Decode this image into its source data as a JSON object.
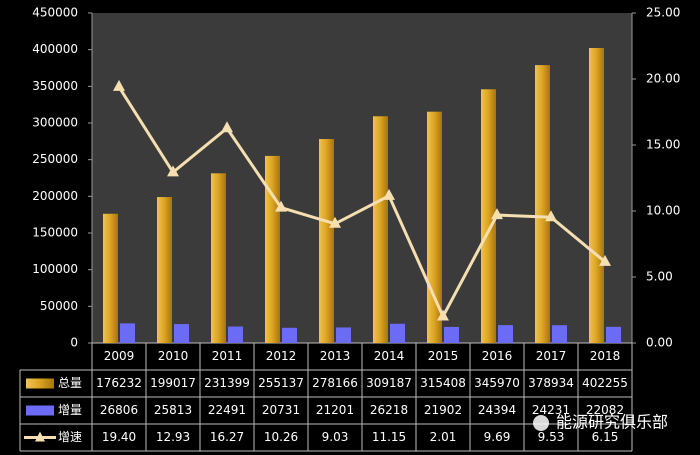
{
  "chart_data": {
    "type": "bar-line-table",
    "categories": [
      "2009",
      "2010",
      "2011",
      "2012",
      "2013",
      "2014",
      "2015",
      "2016",
      "2017",
      "2018"
    ],
    "series": [
      {
        "name": "总量",
        "type": "bar",
        "color": "#dba322",
        "values": [
          176232,
          199017,
          231399,
          255137,
          278166,
          309187,
          315408,
          345970,
          378934,
          402255
        ]
      },
      {
        "name": "增量",
        "type": "bar",
        "color": "#6b6bf5",
        "values": [
          26806,
          25813,
          22491,
          20731,
          21201,
          26218,
          21902,
          24394,
          24231,
          22082
        ]
      },
      {
        "name": "增速",
        "type": "line",
        "axis": "y2",
        "color": "#f5dfb0",
        "values": [
          19.4,
          12.93,
          16.27,
          10.26,
          9.03,
          11.15,
          2.01,
          9.69,
          9.53,
          6.15
        ],
        "value_labels": [
          "19.40",
          "12.93",
          "16.27",
          "10.26",
          "9.03",
          "11.15",
          "2.01",
          "9.69",
          "9.53",
          "6.15"
        ]
      }
    ],
    "ylim": [
      0,
      450000
    ],
    "yticks": [
      0,
      50000,
      100000,
      150000,
      200000,
      250000,
      300000,
      350000,
      400000,
      450000
    ],
    "y2lim": [
      0,
      25
    ],
    "y2ticks": [
      {
        "value": 0,
        "label": "0.00"
      },
      {
        "value": 5,
        "label": "5.00"
      },
      {
        "value": 10,
        "label": "10.00"
      },
      {
        "value": 15,
        "label": "15.00"
      },
      {
        "value": 20,
        "label": "20.00"
      },
      {
        "value": 25,
        "label": "25.00"
      }
    ],
    "watermark": "能源研究俱乐部"
  }
}
